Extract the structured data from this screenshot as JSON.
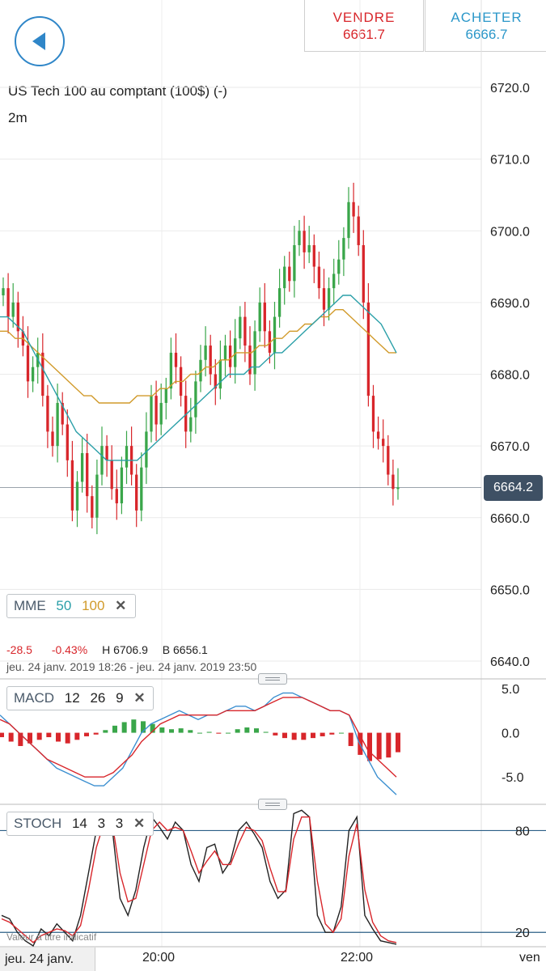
{
  "header": {
    "sell_label": "VENDRE",
    "sell_price": "6661.7",
    "buy_label": "ACHETER",
    "buy_price": "6666.7"
  },
  "chart_info": {
    "title": "US Tech 100 au comptant (100$) (-)",
    "interval": "2m",
    "current_price": "6664.2",
    "change": "-28.5",
    "change_pct": "-0.43%",
    "high": "H 6706.9",
    "low": "B 6656.1",
    "range": "jeu. 24 janv. 2019 18:26 - jeu. 24 janv. 2019 23:50",
    "note": "Valeur à titre indicatif"
  },
  "indicators": {
    "mme": {
      "name": "MME",
      "p1": "50",
      "p2": "100",
      "c1": "#2a9fa8",
      "c2": "#d19a2a"
    },
    "macd": {
      "name": "MACD",
      "p1": "12",
      "p2": "26",
      "p3": "9"
    },
    "stoch": {
      "name": "STOCH",
      "p1": "14",
      "p2": "3",
      "p3": "3"
    }
  },
  "x_axis": {
    "date": "jeu. 24 janv.",
    "t1": "20:00",
    "t2": "22:00",
    "right": "ven"
  },
  "colors": {
    "up": "#3aa64a",
    "down": "#d8262b",
    "accent": "#2f86c8",
    "tag": "#3e5064"
  },
  "chart_data": [
    {
      "type": "candlestick",
      "title": "US Tech 100 au comptant (100$) (-)",
      "yticks": [
        "6720.0",
        "6710.0",
        "6700.0",
        "6690.0",
        "6680.0",
        "6670.0",
        "6660.0",
        "6650.0",
        "6640.0"
      ],
      "ylim": [
        6640,
        6720
      ],
      "current": 6664.2,
      "x_ticks": [
        "20:00",
        "22:00"
      ],
      "close": [
        6692,
        6688,
        6690,
        6686,
        6684,
        6679,
        6681,
        6683,
        6677,
        6672,
        6670,
        6676,
        6673,
        6668,
        6661,
        6665,
        6669,
        6663,
        6660,
        6666,
        6670,
        6668,
        6664,
        6662,
        6667,
        6670,
        6666,
        6661,
        6667,
        6672,
        6677,
        6673,
        6676,
        6678,
        6683,
        6681,
        6677,
        6672,
        6674,
        6679,
        6682,
        6684,
        6680,
        6678,
        6682,
        6684,
        6681,
        6685,
        6688,
        6684,
        6680,
        6686,
        6690,
        6686,
        6683,
        6688,
        6692,
        6695,
        6693,
        6698,
        6700,
        6697,
        6698,
        6695,
        6692,
        6689,
        6692,
        6694,
        6696,
        6699,
        6704,
        6702,
        6698,
        6690,
        6677,
        6672,
        6671,
        6670,
        6666,
        6664,
        6664.2
      ],
      "ema50": [
        6688,
        6688,
        6687,
        6686,
        6684,
        6682,
        6680,
        6678,
        6676,
        6674,
        6672,
        6671,
        6670,
        6669,
        6668,
        6668,
        6668,
        6668,
        6668,
        6669,
        6670,
        6671,
        6672,
        6673,
        6674,
        6675,
        6676,
        6677,
        6678,
        6679,
        6680,
        6680,
        6680,
        6681,
        6681,
        6682,
        6683,
        6683,
        6684,
        6685,
        6686,
        6687,
        6688,
        6689,
        6690,
        6691,
        6691,
        6690,
        6689,
        6688,
        6687,
        6685,
        6683
      ],
      "ema100": [
        6686,
        6686,
        6685,
        6685,
        6684,
        6683,
        6682,
        6681,
        6680,
        6679,
        6678,
        6677,
        6677,
        6676,
        6676,
        6676,
        6676,
        6676,
        6677,
        6677,
        6677,
        6678,
        6678,
        6679,
        6679,
        6680,
        6680,
        6681,
        6681,
        6682,
        6682,
        6683,
        6683,
        6683,
        6684,
        6684,
        6685,
        6685,
        6686,
        6686,
        6687,
        6687,
        6688,
        6688,
        6689,
        6689,
        6688,
        6687,
        6686,
        6685,
        6684,
        6683,
        6683
      ]
    },
    {
      "type": "bar+line",
      "title": "MACD",
      "yticks": [
        "5.0",
        "0.0",
        "-5.0"
      ],
      "ylim": [
        -8,
        6
      ],
      "macd": [
        2,
        1,
        0,
        -1,
        -2,
        -3,
        -4,
        -4.5,
        -5,
        -5.5,
        -6,
        -6,
        -5,
        -4,
        -2,
        0,
        1,
        1.5,
        2,
        2.5,
        2,
        1.5,
        2,
        2,
        2.5,
        3,
        3,
        2.5,
        3,
        4,
        4.5,
        4.5,
        4,
        3.5,
        3,
        2.5,
        2.5,
        2,
        -1,
        -3,
        -5,
        -6,
        -7
      ],
      "signal": [
        1.5,
        1,
        0,
        -1,
        -2,
        -3,
        -3.5,
        -4,
        -4.5,
        -5,
        -5,
        -5,
        -4.5,
        -3.5,
        -2.5,
        -1,
        0,
        1,
        1.5,
        2,
        2,
        2,
        2,
        2,
        2.5,
        2.5,
        2.5,
        2.5,
        3,
        3.5,
        4,
        4,
        4,
        3.5,
        3,
        2.5,
        2.5,
        2,
        0,
        -2,
        -3,
        -4,
        -5
      ],
      "histogram": [
        -0.5,
        -1,
        -1.5,
        -1.2,
        -0.8,
        -0.5,
        -1,
        -1.2,
        -0.8,
        -0.4,
        -0.2,
        0.3,
        0.8,
        1.2,
        1.5,
        1.3,
        1,
        0.6,
        0.4,
        0.5,
        0.3,
        0,
        0.1,
        -0.1,
        0,
        0.4,
        0.6,
        0.5,
        0.1,
        -0.3,
        -0.6,
        -0.8,
        -0.8,
        -0.6,
        -0.4,
        -0.2,
        0,
        -1.5,
        -2.5,
        -3.2,
        -3,
        -2.8,
        -2.2
      ]
    },
    {
      "type": "line",
      "title": "STOCH",
      "yticks": [
        "80",
        "20"
      ],
      "ylim": [
        12,
        95
      ],
      "k": [
        30,
        28,
        20,
        15,
        12,
        22,
        18,
        25,
        20,
        15,
        30,
        55,
        80,
        90,
        82,
        40,
        30,
        45,
        70,
        88,
        82,
        75,
        85,
        80,
        60,
        50,
        70,
        72,
        55,
        62,
        80,
        85,
        78,
        70,
        50,
        40,
        45,
        90,
        92,
        88,
        30,
        20,
        20,
        35,
        80,
        88,
        30,
        22,
        15,
        14,
        13
      ],
      "d": [
        28,
        26,
        22,
        18,
        14,
        18,
        20,
        22,
        21,
        18,
        24,
        45,
        70,
        85,
        85,
        55,
        38,
        40,
        60,
        80,
        85,
        80,
        82,
        80,
        68,
        55,
        62,
        68,
        60,
        60,
        72,
        82,
        80,
        74,
        58,
        44,
        44,
        75,
        88,
        88,
        50,
        25,
        20,
        28,
        65,
        84,
        45,
        26,
        18,
        15,
        14
      ]
    }
  ]
}
